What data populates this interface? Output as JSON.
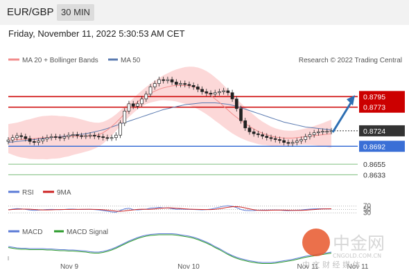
{
  "header": {
    "pair": "EUR/GBP",
    "timeframe": "30 MIN",
    "datetime": "Friday, November 11, 2022 5:30:53 AM CET"
  },
  "legend": {
    "ma20_label": "MA 20 + Bollinger Bands",
    "ma50_label": "MA 50",
    "source": "Research © 2022 Trading Central",
    "rsi_label": "RSI",
    "rsi_ma_label": "9MA",
    "macd_label": "MACD",
    "macd_signal_label": "MACD Signal"
  },
  "colors": {
    "resistance": "#cc0000",
    "support": "#3a6fd6",
    "target": "#7dbd7d",
    "ma20": "#f28b8b",
    "bands": "#fcd8d8",
    "ma50": "#5a7ab0",
    "arrow": "#2e6fb3",
    "current": "#333333"
  },
  "watermark": {
    "logo_text": "中金网",
    "domain": "CNGOLD.COM.CN",
    "tagline": "中 文 财 经 媒 体"
  },
  "chart_data": {
    "type": "candlestick",
    "price_range": [
      0.8625,
      0.884
    ],
    "x_ticks": [
      "Nov 9",
      "Nov 10",
      "Nov 11",
      "Nov 11"
    ],
    "levels": [
      {
        "value": 0.8795,
        "label": "0.8795",
        "kind": "resistance"
      },
      {
        "value": 0.8773,
        "label": "0.8773",
        "kind": "resistance"
      },
      {
        "value": 0.8724,
        "label": "0.8724",
        "kind": "current"
      },
      {
        "value": 0.8692,
        "label": "0.8692",
        "kind": "support"
      },
      {
        "value": 0.8655,
        "label": "0.8655",
        "kind": "target"
      },
      {
        "value": 0.8633,
        "label": "0.8633",
        "kind": "target"
      }
    ],
    "close": [
      0.8705,
      0.871,
      0.8714,
      0.8712,
      0.8708,
      0.8702,
      0.87,
      0.8703,
      0.8707,
      0.871,
      0.8712,
      0.8711,
      0.8709,
      0.8712,
      0.8715,
      0.8716,
      0.8714,
      0.8713,
      0.8714,
      0.8715,
      0.8713,
      0.8712,
      0.871,
      0.8709,
      0.871,
      0.8715,
      0.874,
      0.8765,
      0.878,
      0.8775,
      0.878,
      0.879,
      0.88,
      0.8815,
      0.8822,
      0.883,
      0.8828,
      0.883,
      0.8825,
      0.882,
      0.8822,
      0.882,
      0.8818,
      0.8815,
      0.881,
      0.8805,
      0.8802,
      0.88,
      0.8803,
      0.8805,
      0.8807,
      0.8803,
      0.879,
      0.877,
      0.8745,
      0.873,
      0.8722,
      0.8718,
      0.8716,
      0.8713,
      0.871,
      0.8708,
      0.8706,
      0.8704,
      0.87,
      0.8698,
      0.87,
      0.8703,
      0.8706,
      0.8712,
      0.8716,
      0.872,
      0.8722,
      0.8723,
      0.8723,
      0.8724
    ],
    "ma20": [
      0.8708,
      0.8707,
      0.8706,
      0.8706,
      0.8707,
      0.8707,
      0.8708,
      0.8709,
      0.871,
      0.871,
      0.8711,
      0.8711,
      0.8711,
      0.8712,
      0.8712,
      0.8713,
      0.8713,
      0.8713,
      0.8713,
      0.8713,
      0.8714,
      0.8716,
      0.872,
      0.8726,
      0.8733,
      0.8741,
      0.875,
      0.8759,
      0.8768,
      0.8776,
      0.8784,
      0.8791,
      0.8797,
      0.8802,
      0.8806,
      0.881,
      0.8813,
      0.8815,
      0.8817,
      0.8818,
      0.8818,
      0.8818,
      0.8817,
      0.8815,
      0.8812,
      0.8808,
      0.8803,
      0.8797,
      0.879,
      0.8783,
      0.8775,
      0.8767,
      0.8759,
      0.8752,
      0.8745,
      0.8739,
      0.8733,
      0.8728,
      0.8723,
      0.8719,
      0.8716,
      0.8713,
      0.8711,
      0.871,
      0.8709,
      0.8709,
      0.8709,
      0.871,
      0.8711,
      0.8712,
      0.8713,
      0.8714,
      0.8715,
      0.8716,
      0.8717,
      0.8718
    ],
    "ma50": [
      0.87,
      0.8701,
      0.8702,
      0.8703,
      0.8704,
      0.8705,
      0.8706,
      0.8707,
      0.8708,
      0.8709,
      0.871,
      0.8711,
      0.8712,
      0.8713,
      0.8714,
      0.8715,
      0.8716,
      0.8717,
      0.8718,
      0.872,
      0.8722,
      0.8724,
      0.8726,
      0.8729,
      0.8732,
      0.8735,
      0.8738,
      0.8741,
      0.8744,
      0.8747,
      0.875,
      0.8753,
      0.8756,
      0.8759,
      0.8762,
      0.8765,
      0.8768,
      0.877,
      0.8772,
      0.8774,
      0.8776,
      0.8778,
      0.8779,
      0.878,
      0.8781,
      0.8782,
      0.8782,
      0.8782,
      0.8782,
      0.8781,
      0.878,
      0.8779,
      0.8777,
      0.8775,
      0.8772,
      0.8769,
      0.8766,
      0.8763,
      0.876,
      0.8757,
      0.8754,
      0.8751,
      0.8748,
      0.8745,
      0.8742,
      0.874,
      0.8738,
      0.8736,
      0.8734,
      0.8732,
      0.8731,
      0.873,
      0.8729,
      0.8728,
      0.8727,
      0.8726
    ],
    "rsi": {
      "levels": [
        70,
        50,
        30
      ],
      "range": [
        0,
        100
      ]
    },
    "macd": {
      "signal_shape": "hump"
    }
  }
}
